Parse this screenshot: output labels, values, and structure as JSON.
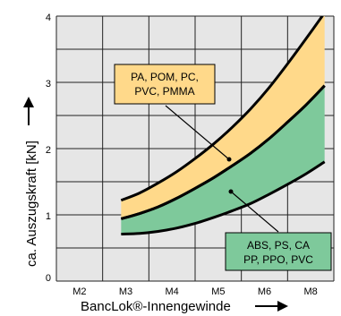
{
  "chart_data": {
    "type": "area",
    "xlabel": "BancLok®-Innengewinde",
    "ylabel": "ca. Auszugskraft  [kN]",
    "categories": [
      "M2",
      "M3",
      "M4",
      "M5",
      "M6",
      "M8"
    ],
    "ylim": [
      0,
      4
    ],
    "yticks": [
      "0",
      "1",
      "2",
      "3",
      "4"
    ],
    "grid": true,
    "x": [
      2.4,
      2.8,
      3.2,
      3.6,
      4.0,
      4.4,
      4.8,
      5.2,
      5.6,
      6.0,
      6.4,
      6.8
    ],
    "series": [
      {
        "name": "PA, POM, PC, PVC, PMMA",
        "fill": "#ffd98a",
        "upper": [
          1.22,
          1.33,
          1.48,
          1.65,
          1.85,
          2.07,
          2.32,
          2.6,
          2.92,
          3.28,
          3.66,
          4.05
        ],
        "lower": [
          0.94,
          1.02,
          1.12,
          1.25,
          1.4,
          1.56,
          1.74,
          1.93,
          2.15,
          2.4,
          2.66,
          2.95
        ]
      },
      {
        "name": "ABS, PS, CA\nPP, PPO, PVC",
        "fill": "#7ec99b",
        "upper": [
          0.94,
          1.02,
          1.12,
          1.25,
          1.4,
          1.56,
          1.74,
          1.93,
          2.15,
          2.4,
          2.66,
          2.95
        ],
        "lower": [
          0.71,
          0.72,
          0.75,
          0.8,
          0.87,
          0.96,
          1.06,
          1.17,
          1.31,
          1.46,
          1.62,
          1.8
        ]
      }
    ],
    "labels": [
      {
        "series": 0,
        "lines": [
          "PA, POM, PC,",
          "PVC, PMMA"
        ]
      },
      {
        "series": 1,
        "lines": [
          "ABS, PS, CA",
          "PP, PPO, PVC"
        ]
      }
    ],
    "colors": {
      "grid_bg": "#e6e6e6",
      "line": "#000000"
    }
  }
}
